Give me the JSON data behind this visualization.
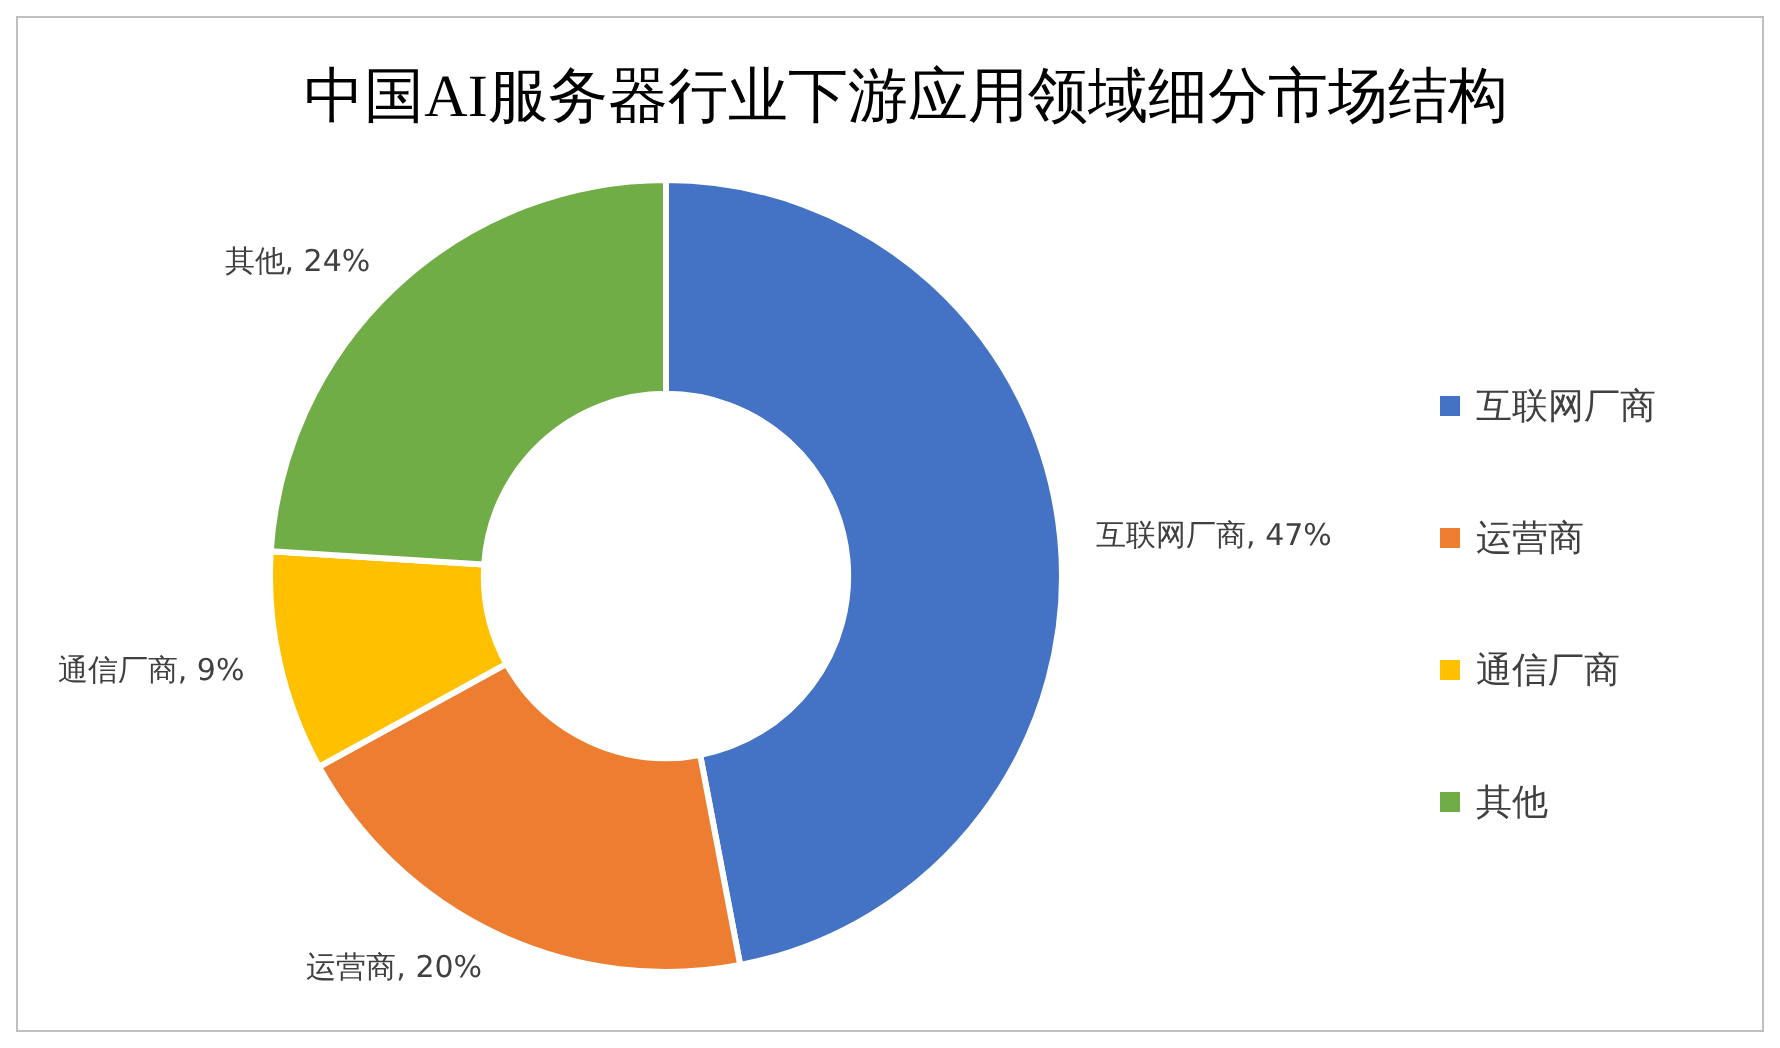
{
  "chart_data": {
    "type": "donut",
    "title": "中国AI服务器行业下游应用领域细分市场结构",
    "categories": [
      "互联网厂商",
      "运营商",
      "通信厂商",
      "其他"
    ],
    "values": [
      47,
      20,
      9,
      24
    ],
    "value_labels": [
      "互联网厂商, 47%",
      "运营商, 20%",
      "通信厂商, 9%",
      "其他, 24%"
    ],
    "colors": [
      "#4472c4",
      "#ed7d31",
      "#ffc000",
      "#70ad47"
    ],
    "legend": "right"
  }
}
